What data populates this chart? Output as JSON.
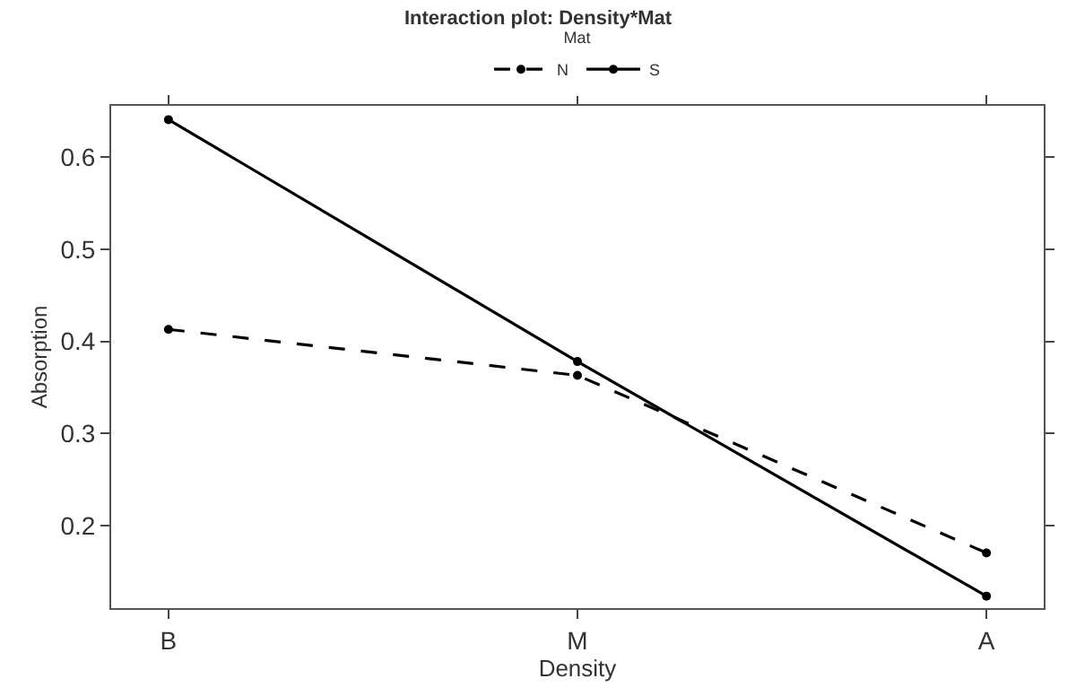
{
  "chart_data": {
    "type": "line",
    "title": "Interaction plot: Density*Mat",
    "xlabel": "Density",
    "ylabel": "Absorption",
    "legend_title": "Mat",
    "categories": [
      "B",
      "M",
      "A"
    ],
    "series": [
      {
        "name": "N",
        "color": "#000000",
        "values": [
          0.413,
          0.363,
          0.17
        ],
        "line_style": "dashed"
      },
      {
        "name": "S",
        "color": "#000000",
        "values": [
          0.641,
          0.378,
          0.123
        ],
        "line_style": "solid"
      }
    ],
    "ylim": [
      0.11,
      0.656
    ],
    "yticks": [
      0.2,
      0.3,
      0.4,
      0.5,
      0.6
    ],
    "legend": "top",
    "marker": "circle"
  }
}
